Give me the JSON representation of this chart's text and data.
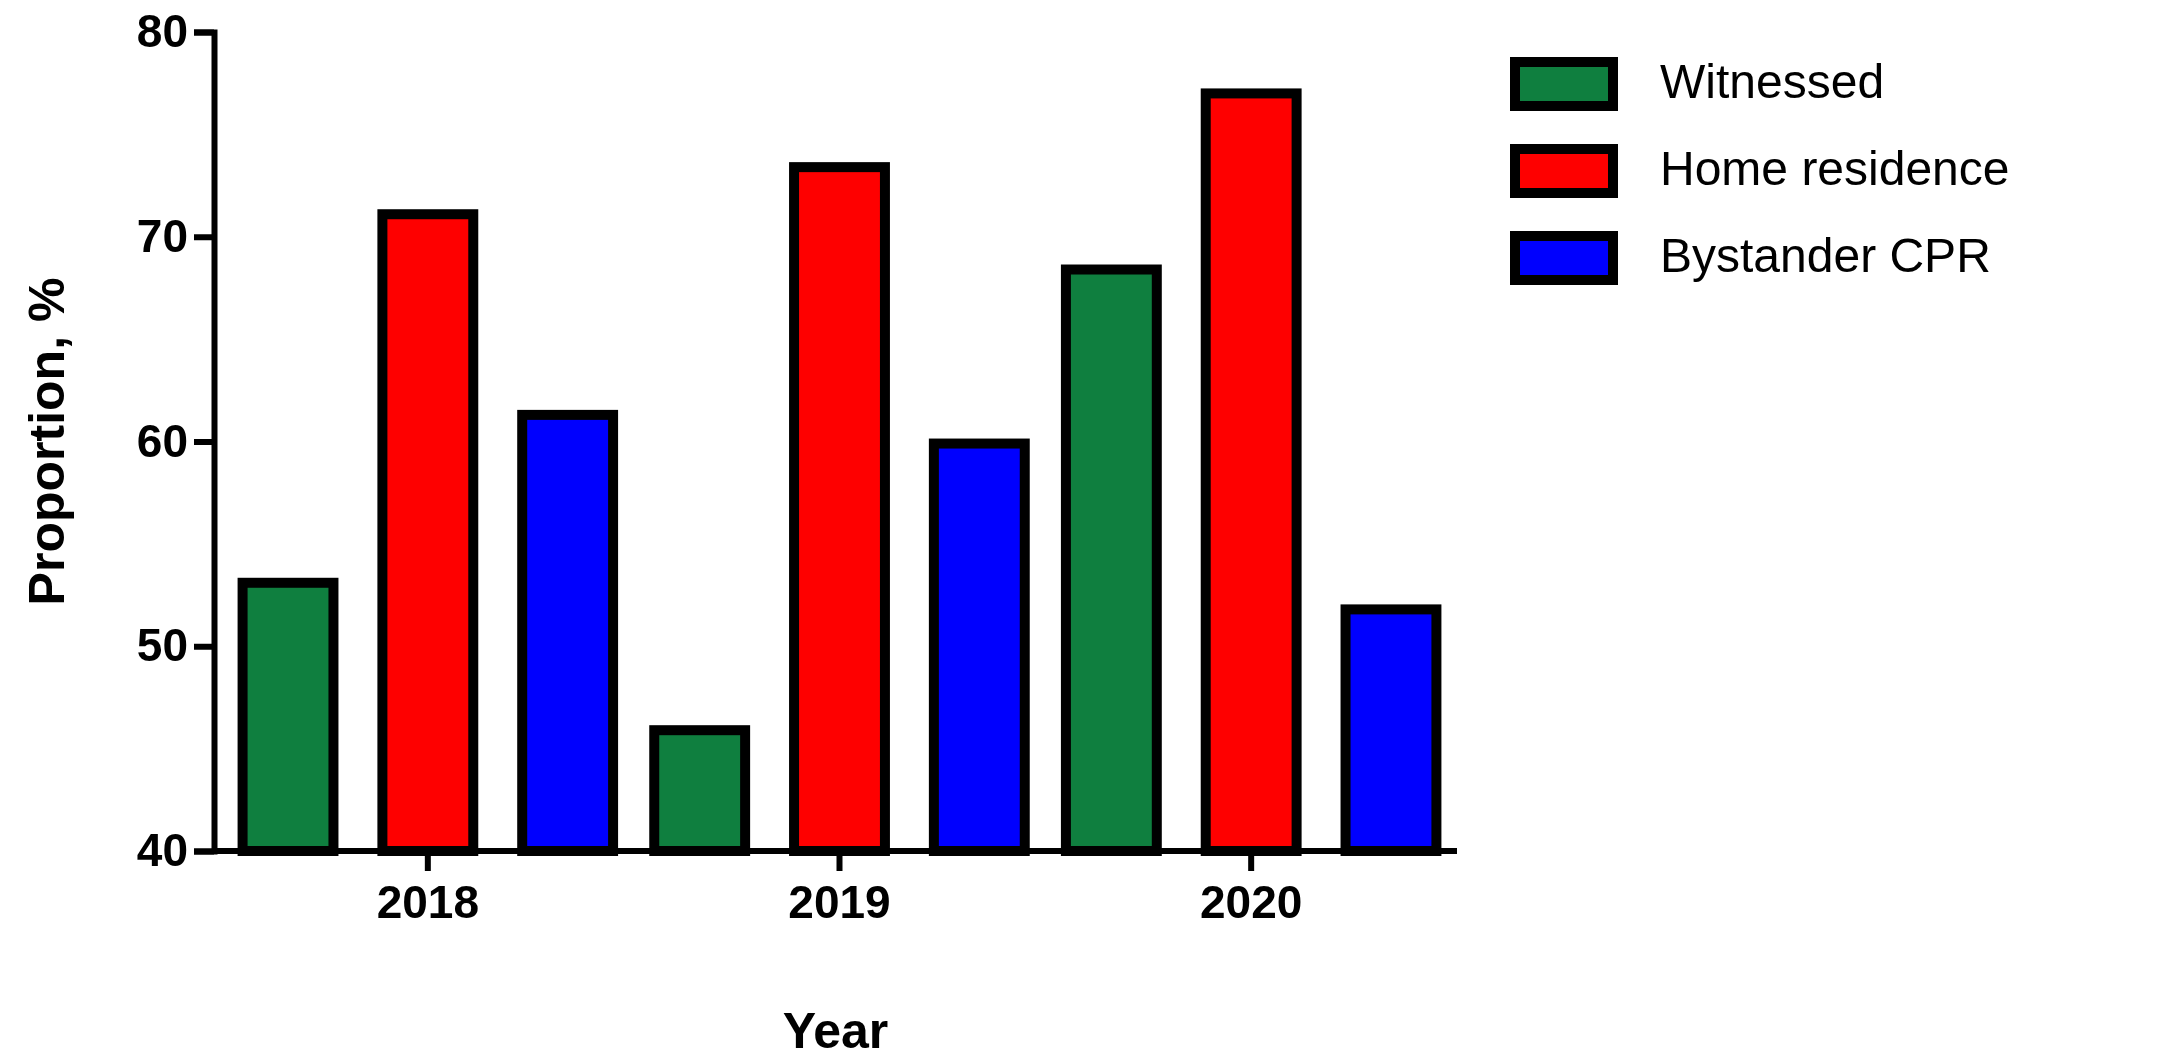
{
  "chart_data": {
    "type": "bar",
    "xlabel": "Year",
    "ylabel": "Proportion, %",
    "categories": [
      "2018",
      "2019",
      "2020"
    ],
    "series": [
      {
        "name": "Witnessed",
        "color": "#0f7f3f",
        "values": [
          53.1,
          45.9,
          68.4
        ]
      },
      {
        "name": "Home residence",
        "color": "#fe0000",
        "values": [
          71.1,
          73.4,
          77.0
        ]
      },
      {
        "name": "Bystander CPR",
        "color": "#0000fe",
        "values": [
          61.3,
          59.9,
          51.8
        ]
      }
    ],
    "ylim": [
      40,
      80
    ],
    "yticks": [
      40,
      50,
      60,
      70,
      80
    ],
    "grid": false,
    "legend": "right"
  }
}
